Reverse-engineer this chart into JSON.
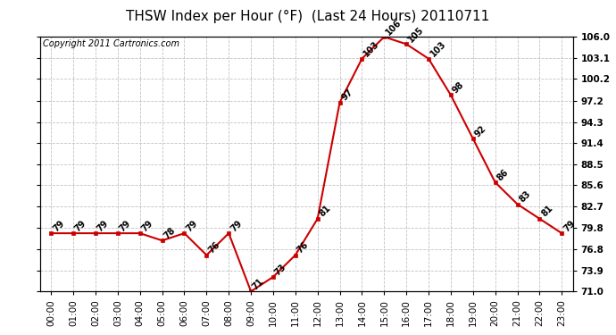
{
  "title": "THSW Index per Hour (°F)  (Last 24 Hours) 20110711",
  "copyright": "Copyright 2011 Cartronics.com",
  "hours": [
    "00:00",
    "01:00",
    "02:00",
    "03:00",
    "04:00",
    "05:00",
    "06:00",
    "07:00",
    "08:00",
    "09:00",
    "10:00",
    "11:00",
    "12:00",
    "13:00",
    "14:00",
    "15:00",
    "16:00",
    "17:00",
    "18:00",
    "19:00",
    "20:00",
    "21:00",
    "22:00",
    "23:00"
  ],
  "values": [
    79,
    79,
    79,
    79,
    79,
    78,
    79,
    76,
    79,
    71,
    73,
    76,
    81,
    97,
    103,
    106,
    105,
    103,
    98,
    92,
    86,
    83,
    81,
    79
  ],
  "ylim": [
    71.0,
    106.0
  ],
  "yticks": [
    71.0,
    73.9,
    76.8,
    79.8,
    82.7,
    85.6,
    88.5,
    91.4,
    94.3,
    97.2,
    100.2,
    103.1,
    106.0
  ],
  "line_color": "#cc0000",
  "marker_color": "#cc0000",
  "bg_color": "#ffffff",
  "plot_bg_color": "#ffffff",
  "grid_color": "#bbbbbb",
  "title_fontsize": 11,
  "copyright_fontsize": 7,
  "label_fontsize": 7,
  "tick_fontsize": 7.5
}
